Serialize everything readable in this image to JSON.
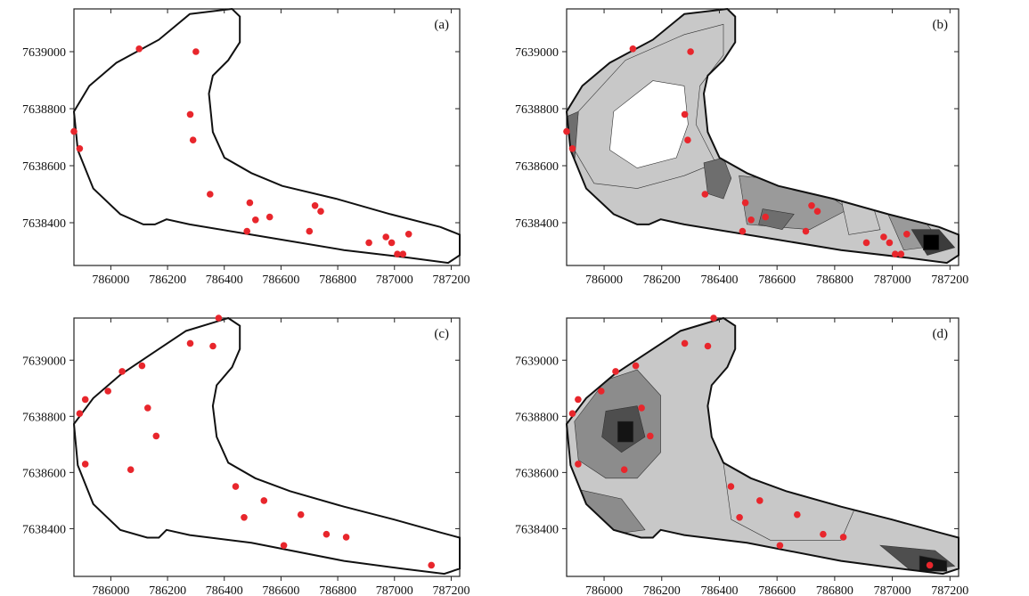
{
  "chart_data": [
    {
      "id": "a",
      "panel_label": "(a)",
      "type": "scatter",
      "xlim": [
        785870,
        787230
      ],
      "ylim": [
        7638250,
        7639150
      ],
      "xticks": [
        "786000",
        "786200",
        "786400",
        "786600",
        "786800",
        "787000",
        "787200"
      ],
      "yticks": [
        "7638400",
        "7638600",
        "7638800",
        "7639000"
      ],
      "points": [
        [
          785870,
          7638720
        ],
        [
          785890,
          7638660
        ],
        [
          786100,
          7639010
        ],
        [
          786300,
          7639000
        ],
        [
          786280,
          7638780
        ],
        [
          786290,
          7638690
        ],
        [
          786350,
          7638500
        ],
        [
          786490,
          7638470
        ],
        [
          786510,
          7638410
        ],
        [
          786560,
          7638420
        ],
        [
          786480,
          7638370
        ],
        [
          786700,
          7638370
        ],
        [
          786720,
          7638460
        ],
        [
          786740,
          7638440
        ],
        [
          786910,
          7638330
        ],
        [
          786970,
          7638350
        ],
        [
          786990,
          7638330
        ],
        [
          787010,
          7638290
        ],
        [
          787030,
          7638290
        ],
        [
          787050,
          7638360
        ]
      ]
    },
    {
      "id": "b",
      "panel_label": "(b)",
      "type": "heatmap",
      "xlim": [
        785870,
        787230
      ],
      "ylim": [
        7638250,
        7639150
      ],
      "xticks": [
        "786000",
        "786200",
        "786400",
        "786600",
        "786800",
        "787000",
        "787200"
      ],
      "yticks": [
        "7638400",
        "7638600",
        "7638800",
        "7639000"
      ],
      "colorbar": {
        "levels": [
          "16",
          "28",
          "40",
          "52",
          "64",
          "76"
        ],
        "colors": [
          "#ffffff",
          "#c8c8c8",
          "#9a9a9a",
          "#6e6e6e",
          "#3c3c3c",
          "#000000"
        ]
      },
      "points": [
        [
          785870,
          7638720
        ],
        [
          785890,
          7638660
        ],
        [
          786100,
          7639010
        ],
        [
          786300,
          7639000
        ],
        [
          786280,
          7638780
        ],
        [
          786290,
          7638690
        ],
        [
          786350,
          7638500
        ],
        [
          786490,
          7638470
        ],
        [
          786510,
          7638410
        ],
        [
          786560,
          7638420
        ],
        [
          786480,
          7638370
        ],
        [
          786700,
          7638370
        ],
        [
          786720,
          7638460
        ],
        [
          786740,
          7638440
        ],
        [
          786910,
          7638330
        ],
        [
          786970,
          7638350
        ],
        [
          786990,
          7638330
        ],
        [
          787010,
          7638290
        ],
        [
          787030,
          7638290
        ],
        [
          787050,
          7638360
        ]
      ]
    },
    {
      "id": "c",
      "panel_label": "(c)",
      "type": "scatter",
      "xlim": [
        785870,
        787230
      ],
      "ylim": [
        7638230,
        7639150
      ],
      "xticks": [
        "786000",
        "786200",
        "786400",
        "786600",
        "786800",
        "787000",
        "787200"
      ],
      "yticks": [
        "7638400",
        "7638600",
        "7638800",
        "7639000"
      ],
      "points": [
        [
          786380,
          7639150
        ],
        [
          786280,
          7639060
        ],
        [
          786360,
          7639050
        ],
        [
          786110,
          7638980
        ],
        [
          786040,
          7638960
        ],
        [
          785990,
          7638890
        ],
        [
          785910,
          7638860
        ],
        [
          785890,
          7638810
        ],
        [
          786130,
          7638830
        ],
        [
          786160,
          7638730
        ],
        [
          785910,
          7638630
        ],
        [
          786070,
          7638610
        ],
        [
          786440,
          7638550
        ],
        [
          786540,
          7638500
        ],
        [
          786470,
          7638440
        ],
        [
          786670,
          7638450
        ],
        [
          786760,
          7638380
        ],
        [
          786830,
          7638370
        ],
        [
          786610,
          7638340
        ],
        [
          787130,
          7638270
        ]
      ]
    },
    {
      "id": "d",
      "panel_label": "(d)",
      "type": "heatmap",
      "xlim": [
        785870,
        787230
      ],
      "ylim": [
        7638230,
        7639150
      ],
      "xticks": [
        "786000",
        "786200",
        "786400",
        "786600",
        "786800",
        "787000",
        "787200"
      ],
      "yticks": [
        "7638400",
        "7638600",
        "7638800",
        "7639000"
      ],
      "colorbar": {
        "levels": [
          "10",
          "16",
          "22",
          "28",
          "34"
        ],
        "colors": [
          "#ffffff",
          "#c8c8c8",
          "#8c8c8c",
          "#4e4e4e",
          "#141414"
        ]
      },
      "points": [
        [
          786380,
          7639150
        ],
        [
          786280,
          7639060
        ],
        [
          786360,
          7639050
        ],
        [
          786110,
          7638980
        ],
        [
          786040,
          7638960
        ],
        [
          785990,
          7638890
        ],
        [
          785910,
          7638860
        ],
        [
          785890,
          7638810
        ],
        [
          786130,
          7638830
        ],
        [
          786160,
          7638730
        ],
        [
          785910,
          7638630
        ],
        [
          786070,
          7638610
        ],
        [
          786440,
          7638550
        ],
        [
          786540,
          7638500
        ],
        [
          786470,
          7638440
        ],
        [
          786670,
          7638450
        ],
        [
          786760,
          7638380
        ],
        [
          786830,
          7638370
        ],
        [
          786610,
          7638340
        ],
        [
          787130,
          7638270
        ]
      ]
    }
  ],
  "colors": {
    "point": "#e8262c",
    "outline": "#111111"
  }
}
